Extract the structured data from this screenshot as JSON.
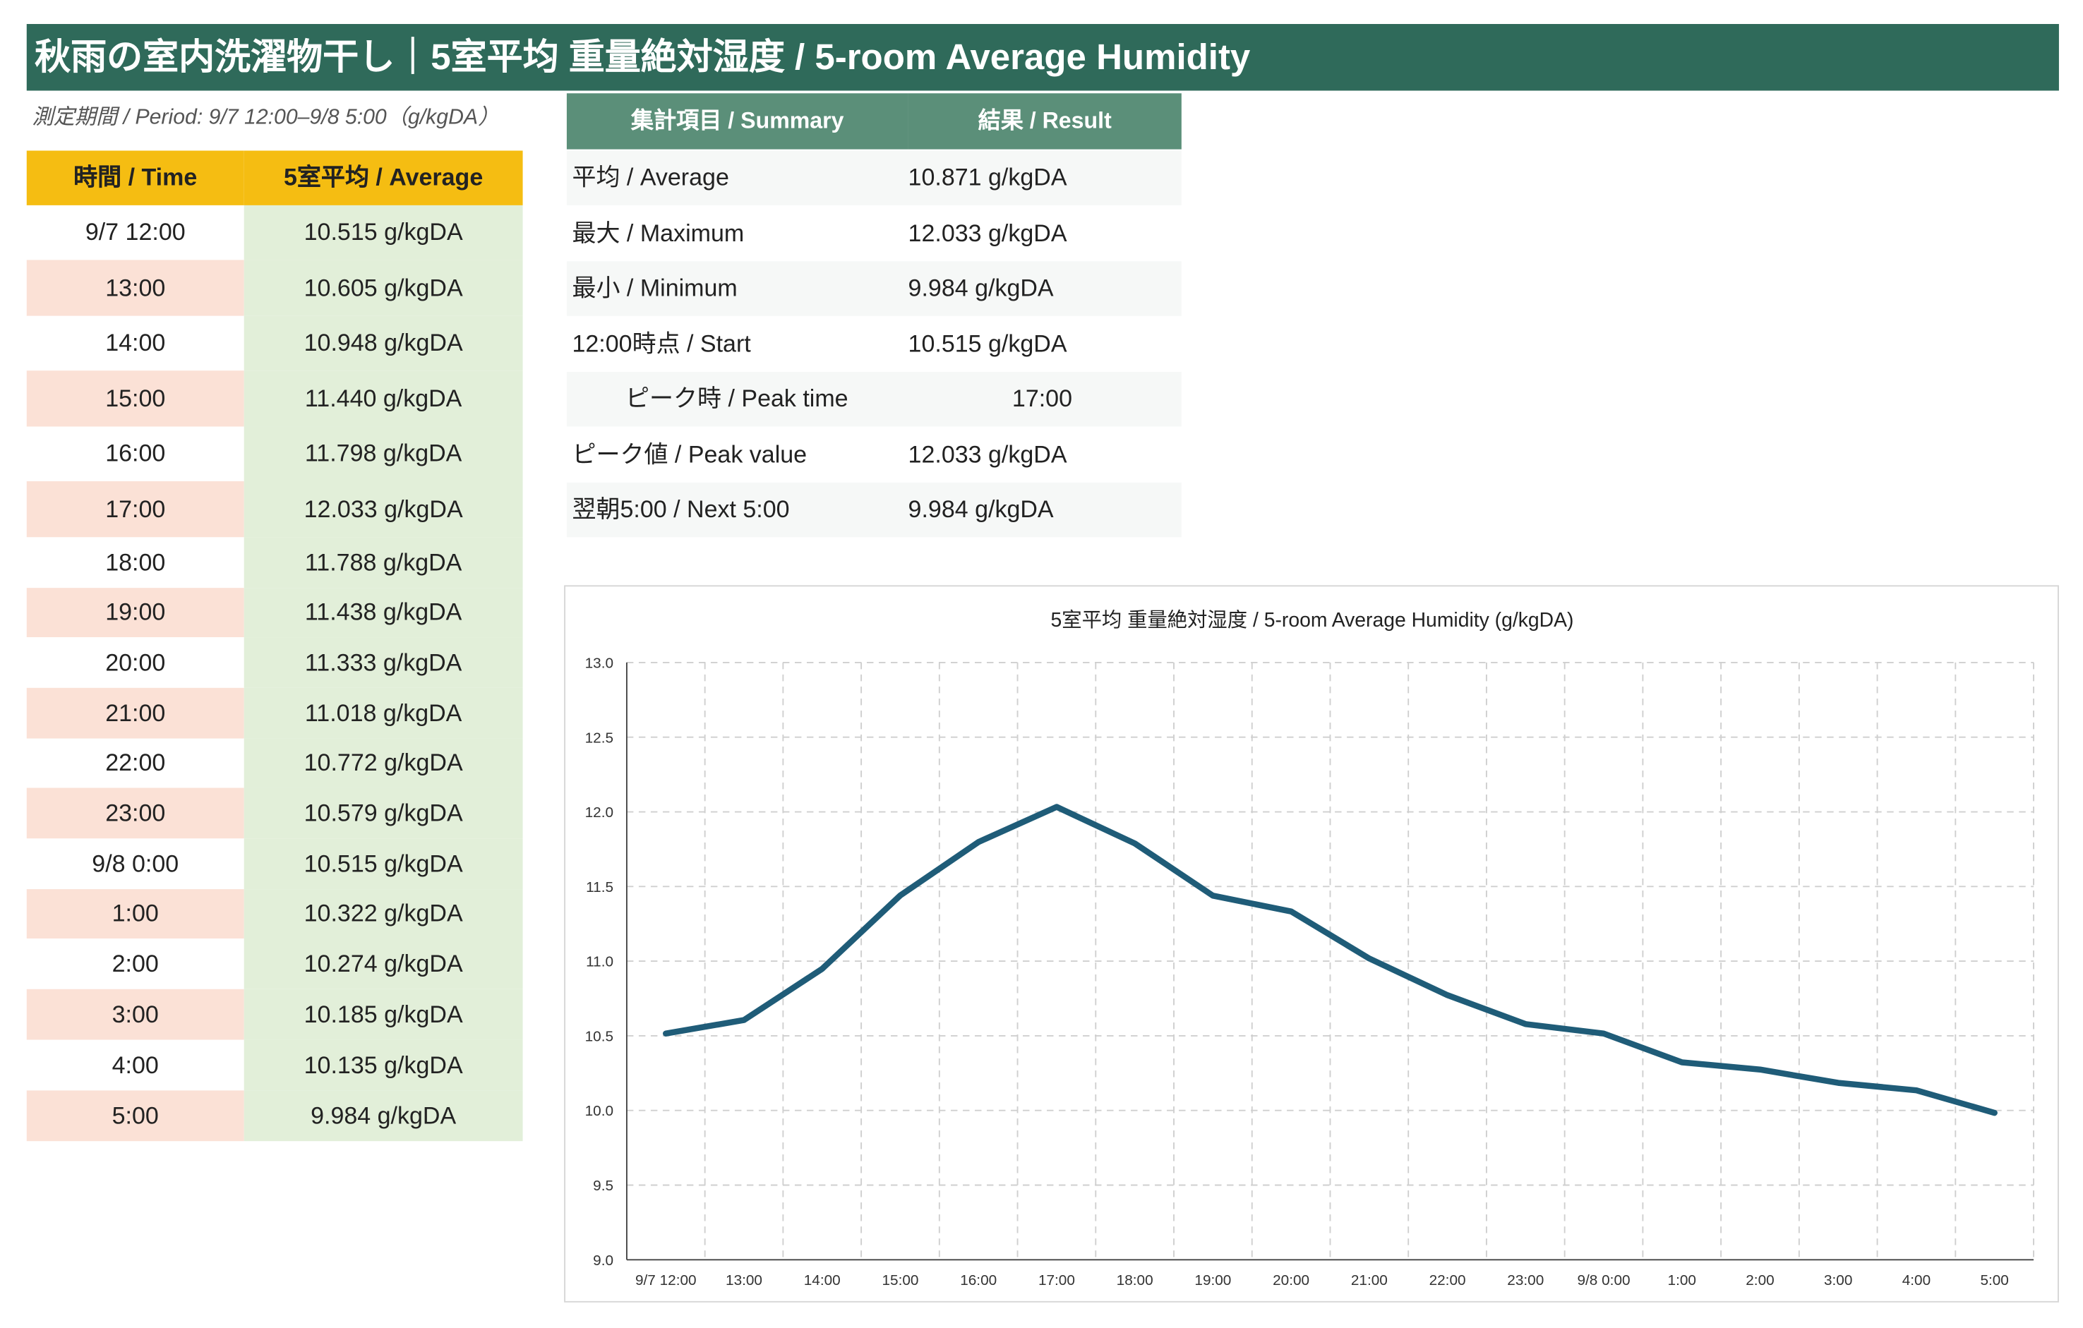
{
  "title": "秋雨の室内洗濯物干し｜5室平均 重量絶対湿度 / 5-room Average Humidity",
  "period": "測定期間 / Period: 9/7 12:00–9/8 5:00（g/kgDA）",
  "table": {
    "headers": [
      "時間 / Time",
      "5室平均 / Average"
    ],
    "rows": [
      {
        "time": "9/7 12:00",
        "value": "10.515 g/kgDA"
      },
      {
        "time": "13:00",
        "value": "10.605 g/kgDA"
      },
      {
        "time": "14:00",
        "value": "10.948 g/kgDA"
      },
      {
        "time": "15:00",
        "value": "11.440 g/kgDA"
      },
      {
        "time": "16:00",
        "value": "11.798 g/kgDA"
      },
      {
        "time": "17:00",
        "value": "12.033 g/kgDA"
      },
      {
        "time": "18:00",
        "value": "11.788 g/kgDA"
      },
      {
        "time": "19:00",
        "value": "11.438 g/kgDA"
      },
      {
        "time": "20:00",
        "value": "11.333 g/kgDA"
      },
      {
        "time": "21:00",
        "value": "11.018 g/kgDA"
      },
      {
        "time": "22:00",
        "value": "10.772 g/kgDA"
      },
      {
        "time": "23:00",
        "value": "10.579 g/kgDA"
      },
      {
        "time": "9/8 0:00",
        "value": "10.515 g/kgDA"
      },
      {
        "time": "1:00",
        "value": "10.322 g/kgDA"
      },
      {
        "time": "2:00",
        "value": "10.274 g/kgDA"
      },
      {
        "time": "3:00",
        "value": "10.185 g/kgDA"
      },
      {
        "time": "4:00",
        "value": "10.135 g/kgDA"
      },
      {
        "time": "5:00",
        "value": "9.984 g/kgDA"
      }
    ]
  },
  "summary": {
    "headers": [
      "集計項目 / Summary",
      "結果 / Result"
    ],
    "rows": [
      {
        "label": "平均 / Average",
        "value": "10.871 g/kgDA"
      },
      {
        "label": "最大 / Maximum",
        "value": "12.033 g/kgDA"
      },
      {
        "label": "最小 / Minimum",
        "value": "9.984 g/kgDA"
      },
      {
        "label": "12:00時点 / Start",
        "value": "10.515 g/kgDA"
      },
      {
        "label": "ピーク時 / Peak time",
        "value": "17:00"
      },
      {
        "label": "ピーク値 / Peak value",
        "value": "12.033 g/kgDA"
      },
      {
        "label": "翌朝5:00 / Next 5:00",
        "value": "9.984 g/kgDA"
      }
    ]
  },
  "colors": {
    "banner": "#2f6a5a",
    "table_header": "#f5bd12",
    "time_band": "#fbe1d6",
    "value_band": "#e2efd9",
    "summary_header": "#5b8f79",
    "summary_band": "#f6f8f7",
    "line": "#1f5c78"
  },
  "chart_data": {
    "type": "line",
    "title": "5室平均 重量絶対湿度 / 5-room Average Humidity (g/kgDA)",
    "categories": [
      "9/7 12:00",
      "13:00",
      "14:00",
      "15:00",
      "16:00",
      "17:00",
      "18:00",
      "19:00",
      "20:00",
      "21:00",
      "22:00",
      "23:00",
      "9/8 0:00",
      "1:00",
      "2:00",
      "3:00",
      "4:00",
      "5:00"
    ],
    "series": [
      {
        "values": [
          10.515,
          10.605,
          10.948,
          11.44,
          11.798,
          12.033,
          11.788,
          11.438,
          11.333,
          11.018,
          10.772,
          10.579,
          10.515,
          10.322,
          10.274,
          10.185,
          10.135,
          9.984
        ]
      }
    ],
    "ylim": [
      9.0,
      13.0
    ],
    "yticks": [
      "13.0",
      "12.5",
      "12.0",
      "11.5",
      "11.0",
      "10.5",
      "10.0",
      "9.5",
      "9.0"
    ],
    "grid": true,
    "legend": "none"
  }
}
